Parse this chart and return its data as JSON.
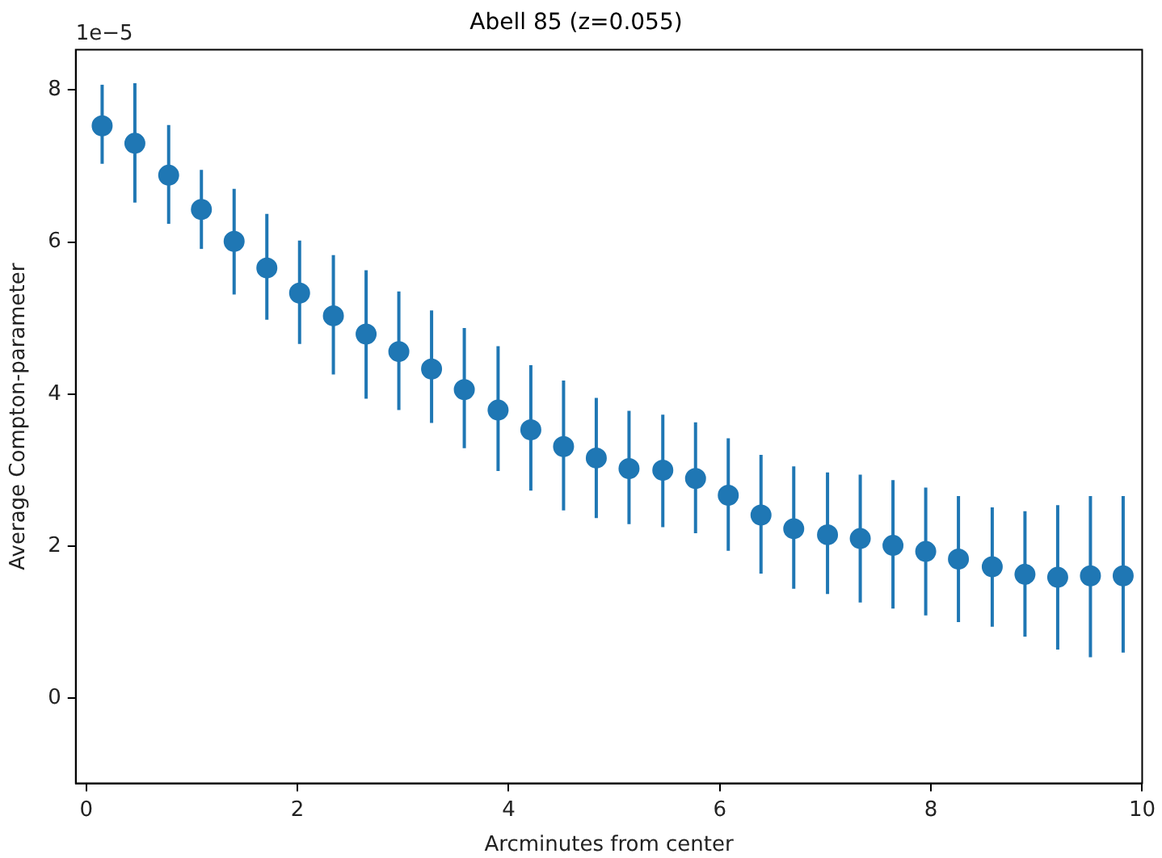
{
  "chart_data": {
    "type": "scatter",
    "title": "Abell 85 (z=0.055)",
    "xlabel": "Arcminutes from center",
    "ylabel": "Average Compton-parameter",
    "annotations": [
      "1e−5"
    ],
    "x": [
      0.15,
      0.46,
      0.78,
      1.09,
      1.4,
      1.71,
      2.02,
      2.34,
      2.65,
      2.96,
      3.27,
      3.58,
      3.9,
      4.21,
      4.52,
      4.83,
      5.14,
      5.46,
      5.77,
      6.08,
      6.39,
      6.7,
      7.02,
      7.33,
      7.64,
      7.95,
      8.26,
      8.58,
      8.89,
      9.2,
      9.51,
      9.82
    ],
    "values": [
      7.53,
      7.3,
      6.88,
      6.43,
      6.01,
      5.66,
      5.33,
      5.03,
      4.79,
      4.56,
      4.33,
      4.06,
      3.79,
      3.53,
      3.31,
      3.16,
      3.02,
      3.0,
      2.89,
      2.67,
      2.41,
      2.23,
      2.15,
      2.1,
      2.01,
      1.93,
      1.83,
      1.73,
      1.63,
      1.59,
      1.61,
      1.61
    ],
    "errors": [
      [
        7.03,
        8.07
      ],
      [
        6.52,
        8.09
      ],
      [
        6.24,
        7.54
      ],
      [
        5.91,
        6.95
      ],
      [
        5.31,
        6.7
      ],
      [
        4.98,
        6.37
      ],
      [
        4.66,
        6.02
      ],
      [
        4.26,
        5.83
      ],
      [
        3.94,
        5.63
      ],
      [
        3.79,
        5.35
      ],
      [
        3.62,
        5.1
      ],
      [
        3.29,
        4.87
      ],
      [
        2.99,
        4.63
      ],
      [
        2.73,
        4.38
      ],
      [
        2.47,
        4.18
      ],
      [
        2.37,
        3.95
      ],
      [
        2.29,
        3.78
      ],
      [
        2.25,
        3.73
      ],
      [
        2.17,
        3.63
      ],
      [
        1.94,
        3.42
      ],
      [
        1.64,
        3.2
      ],
      [
        1.44,
        3.05
      ],
      [
        1.37,
        2.97
      ],
      [
        1.26,
        2.94
      ],
      [
        1.18,
        2.87
      ],
      [
        1.09,
        2.77
      ],
      [
        1.0,
        2.66
      ],
      [
        0.94,
        2.51
      ],
      [
        0.81,
        2.46
      ],
      [
        0.64,
        2.54
      ],
      [
        0.54,
        2.66
      ],
      [
        0.6,
        2.66
      ]
    ],
    "color": "#1f77b4",
    "marker": "circle",
    "xlim": [
      -0.1,
      10
    ],
    "xticks": [
      0,
      2,
      4,
      6,
      8,
      10
    ],
    "ylim": [
      -1.12,
      8.53
    ],
    "yticks": [
      0,
      2,
      4,
      6,
      8
    ],
    "legend": false
  }
}
